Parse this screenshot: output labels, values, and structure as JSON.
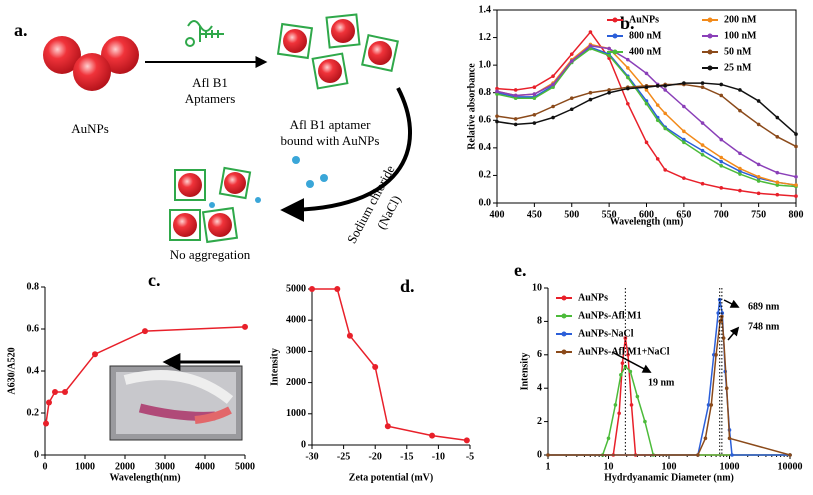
{
  "diagram": {
    "panel": "a.",
    "nanoparticles": "AuNPs",
    "aptamer": [
      "Afl B1",
      "Aptamers"
    ],
    "bound": [
      "Afl B1 aptamer",
      "bound with AuNPs"
    ],
    "salt": [
      "Sodium chloride",
      "(NaCl)"
    ],
    "result": "No aggregation"
  },
  "chart_data": [
    {
      "type": "line",
      "panel": "b.",
      "xlabel": "Wavelength (nm)",
      "ylabel": "Relative absorbance",
      "x": [
        400,
        425,
        450,
        475,
        500,
        525,
        550,
        575,
        600,
        615,
        625,
        650,
        675,
        700,
        725,
        750,
        775,
        800
      ],
      "xlim": [
        400,
        800
      ],
      "xticks": [
        400,
        450,
        500,
        550,
        600,
        650,
        700,
        750,
        800
      ],
      "ylim": [
        0,
        1.4
      ],
      "yticks": [
        {
          "value": 0,
          "label": "0.0"
        },
        0.2,
        0.4,
        0.6,
        0.8,
        {
          "value": 1,
          "label": "1.0"
        },
        1.2,
        1.4
      ],
      "legend": "upper right",
      "box": true,
      "series": [
        {
          "name": "AuNPs",
          "color": "#e8202a",
          "values": [
            0.83,
            0.82,
            0.84,
            0.92,
            1.08,
            1.24,
            1.05,
            0.72,
            0.44,
            0.32,
            0.24,
            0.18,
            0.14,
            0.11,
            0.09,
            0.07,
            0.06,
            0.05
          ]
        },
        {
          "name": "800 nM",
          "color": "#2b5fd9",
          "values": [
            0.8,
            0.77,
            0.77,
            0.85,
            1.02,
            1.13,
            1.08,
            0.92,
            0.74,
            0.62,
            0.55,
            0.46,
            0.38,
            0.3,
            0.23,
            0.18,
            0.15,
            0.13
          ]
        },
        {
          "name": "400 nM",
          "color": "#4cbb3a",
          "values": [
            0.79,
            0.76,
            0.76,
            0.84,
            1.02,
            1.12,
            1.07,
            0.91,
            0.72,
            0.6,
            0.54,
            0.44,
            0.35,
            0.27,
            0.21,
            0.16,
            0.13,
            0.12
          ]
        },
        {
          "name": "200 nM",
          "color": "#f28a1a",
          "values": [
            0.81,
            0.78,
            0.79,
            0.87,
            1.04,
            1.15,
            1.12,
            0.98,
            0.82,
            0.71,
            0.65,
            0.52,
            0.42,
            0.33,
            0.25,
            0.19,
            0.15,
            0.13
          ]
        },
        {
          "name": "100 nM",
          "color": "#8a3fb8",
          "values": [
            0.81,
            0.78,
            0.79,
            0.86,
            1.03,
            1.14,
            1.12,
            1.04,
            0.94,
            0.86,
            0.82,
            0.7,
            0.58,
            0.46,
            0.36,
            0.28,
            0.22,
            0.19
          ]
        },
        {
          "name": "50 nM",
          "color": "#8b4a1a",
          "values": [
            0.63,
            0.61,
            0.64,
            0.7,
            0.76,
            0.8,
            0.82,
            0.84,
            0.85,
            0.85,
            0.86,
            0.86,
            0.84,
            0.78,
            0.67,
            0.57,
            0.48,
            0.41
          ]
        },
        {
          "name": "25 nM",
          "color": "#111111",
          "values": [
            0.59,
            0.57,
            0.58,
            0.62,
            0.68,
            0.75,
            0.8,
            0.83,
            0.84,
            0.85,
            0.85,
            0.87,
            0.87,
            0.86,
            0.82,
            0.74,
            0.62,
            0.5
          ]
        }
      ]
    },
    {
      "type": "line",
      "panel": "c.",
      "xlabel": "Wavelength(nm)",
      "ylabel": "A630/A520",
      "x": [
        25,
        100,
        250,
        500,
        1250,
        2500,
        5000
      ],
      "values": [
        0.15,
        0.25,
        0.3,
        0.3,
        0.48,
        0.59,
        0.61
      ],
      "color": "#e8202a",
      "xlim": [
        0,
        5000
      ],
      "xticks": [
        0,
        1000,
        2000,
        3000,
        4000,
        5000
      ],
      "ylim": [
        0,
        0.8
      ],
      "yticks": [
        0,
        0.2,
        0.4,
        0.6,
        0.8
      ]
    },
    {
      "type": "line",
      "panel": "d.",
      "xlabel": "Zeta potential (mV)",
      "ylabel": "Intensity",
      "x": [
        -30,
        -26,
        -24,
        -20,
        -18,
        -11,
        -5.5
      ],
      "values": [
        5000,
        5000,
        3500,
        2500,
        600,
        300,
        150
      ],
      "color": "#e8202a",
      "xlim": [
        -30,
        -5
      ],
      "xticks": [
        -30,
        -25,
        -20,
        -15,
        -10,
        -5
      ],
      "ylim": [
        0,
        5000
      ],
      "yticks": [
        0,
        1000,
        2000,
        3000,
        4000,
        5000
      ]
    },
    {
      "type": "line",
      "panel": "e.",
      "xlabel": "Hydrdyanamic Diameter (nm)",
      "ylabel": "Intensity",
      "xscale": "log",
      "xlim": [
        1,
        10000
      ],
      "xticks": [
        1,
        10,
        100,
        1000,
        10000
      ],
      "ylim": [
        0,
        10
      ],
      "yticks": [
        0,
        2,
        4,
        6,
        8,
        10
      ],
      "legend": "upper left",
      "annotations": [
        "19 nm",
        "689 nm",
        "748 nm"
      ],
      "series": [
        {
          "name": "AuNPs",
          "color": "#e8202a",
          "x": [
            1,
            12,
            15,
            17,
            19,
            21,
            24,
            28,
            10000
          ],
          "values": [
            0,
            0,
            2.5,
            5.5,
            7,
            6,
            3,
            0,
            0
          ]
        },
        {
          "name": "AuNPs-Afl M1",
          "color": "#4cbb3a",
          "x": [
            1,
            8,
            10,
            13,
            16,
            19,
            23,
            30,
            40,
            55,
            10000
          ],
          "values": [
            0,
            0,
            1,
            3,
            4.8,
            5.3,
            5,
            3.5,
            2,
            0,
            0
          ]
        },
        {
          "name": "AuNPs-NaCl",
          "color": "#2b5fd9",
          "x": [
            1,
            300,
            450,
            550,
            650,
            689,
            760,
            850,
            1000,
            1100,
            10000
          ],
          "values": [
            0,
            0,
            3,
            6,
            8.5,
            9.3,
            8.5,
            5,
            1.5,
            0,
            0
          ]
        },
        {
          "name": "AuNPs-Afl M1+NaCl",
          "color": "#8b4a1a",
          "x": [
            1,
            300,
            400,
            500,
            600,
            700,
            748,
            800,
            900,
            1000,
            10000
          ],
          "values": [
            0,
            0,
            1,
            3,
            6,
            8,
            8.3,
            7,
            4,
            1,
            0
          ]
        }
      ]
    }
  ]
}
